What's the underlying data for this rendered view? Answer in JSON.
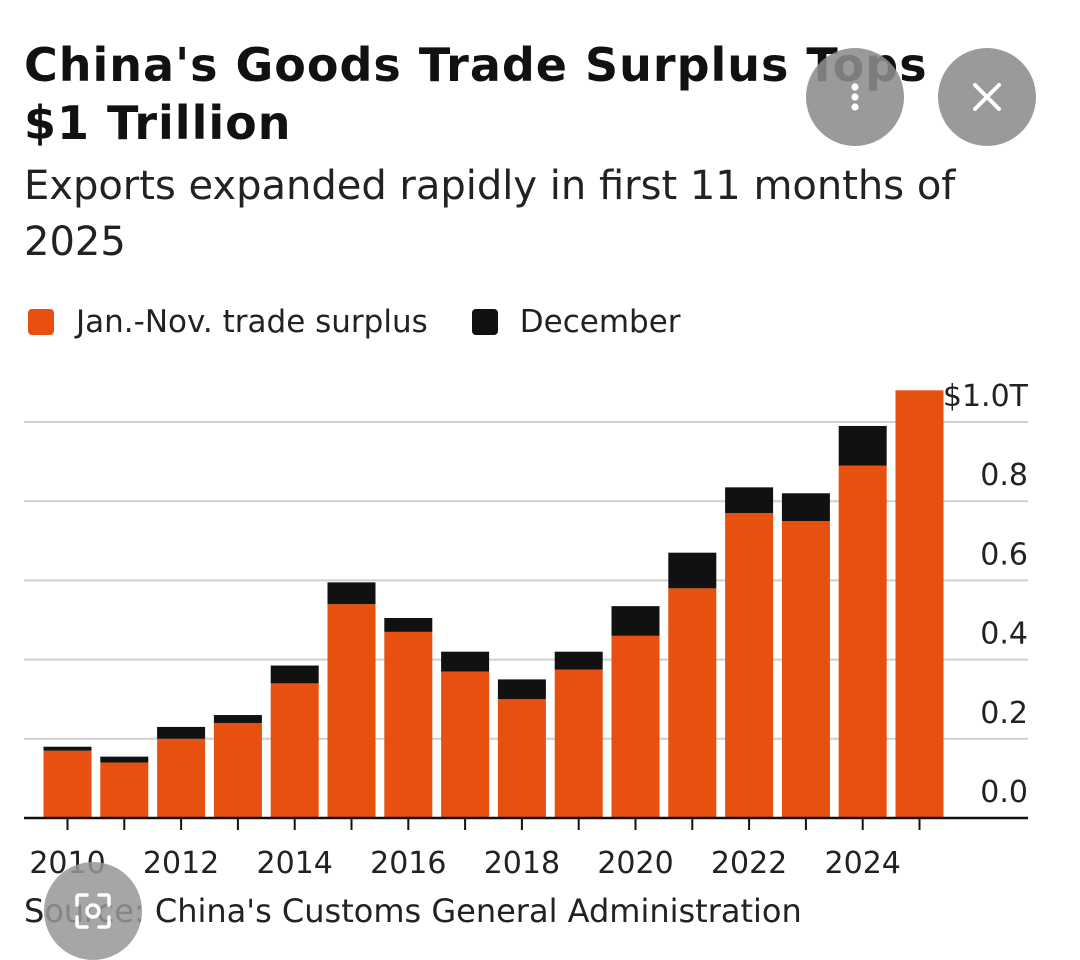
{
  "header": {
    "title": "China's Goods Trade Surplus Tops $1 Trillion",
    "subtitle": "Exports expanded rapidly in first 11 months of 2025"
  },
  "legend": [
    {
      "label": "Jan.-Nov. trade surplus",
      "color": "#e8500f"
    },
    {
      "label": "December",
      "color": "#111111"
    }
  ],
  "chart_data": {
    "type": "bar",
    "stacked": true,
    "categories": [
      "2010",
      "2011",
      "2012",
      "2013",
      "2014",
      "2015",
      "2016",
      "2017",
      "2018",
      "2019",
      "2020",
      "2021",
      "2022",
      "2023",
      "2024",
      "2025"
    ],
    "series": [
      {
        "name": "Jan.-Nov. trade surplus",
        "color": "#e8500f",
        "values": [
          0.17,
          0.14,
          0.2,
          0.24,
          0.34,
          0.54,
          0.47,
          0.37,
          0.3,
          0.375,
          0.46,
          0.58,
          0.77,
          0.75,
          0.89,
          1.08
        ]
      },
      {
        "name": "December",
        "color": "#111111",
        "values": [
          0.01,
          0.015,
          0.03,
          0.02,
          0.045,
          0.055,
          0.035,
          0.05,
          0.05,
          0.045,
          0.075,
          0.09,
          0.065,
          0.07,
          0.1,
          0
        ]
      }
    ],
    "y_ticks": [
      {
        "value": 1.0,
        "label": "$1.0T"
      },
      {
        "value": 0.8,
        "label": "0.8"
      },
      {
        "value": 0.6,
        "label": "0.6"
      },
      {
        "value": 0.4,
        "label": "0.4"
      },
      {
        "value": 0.2,
        "label": "0.2"
      },
      {
        "value": 0.0,
        "label": "0.0"
      }
    ],
    "x_tick_labels": [
      {
        "category": "2010",
        "label": "2010"
      },
      {
        "category": "2012",
        "label": "2012"
      },
      {
        "category": "2014",
        "label": "2014"
      },
      {
        "category": "2016",
        "label": "2016"
      },
      {
        "category": "2018",
        "label": "2018"
      },
      {
        "category": "2020",
        "label": "2020"
      },
      {
        "category": "2022",
        "label": "2022"
      },
      {
        "category": "2024",
        "label": "2024"
      }
    ],
    "ylim": [
      0,
      1.1
    ],
    "grid": true,
    "y_axis_side": "right",
    "legend_position": "top-left"
  },
  "footer": {
    "source": "Source: China's Customs General Administration"
  },
  "overlay": {
    "more_icon": "more-vertical-icon",
    "close_icon": "close-icon",
    "lens_icon": "lens-icon"
  }
}
